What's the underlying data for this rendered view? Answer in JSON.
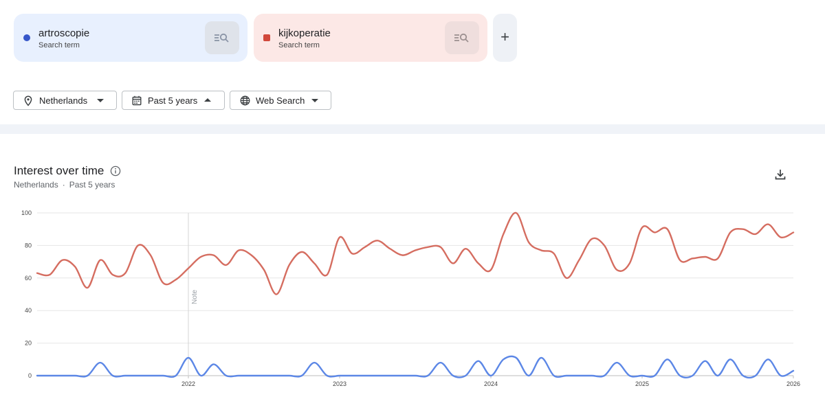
{
  "terms": [
    {
      "name": "artroscopie",
      "subtitle": "Search term",
      "color": "#3656c9",
      "marker": "dot"
    },
    {
      "name": "kijkoperatie",
      "subtitle": "Search term",
      "color": "#d1483b",
      "marker": "square"
    }
  ],
  "add_button": {
    "label": "+"
  },
  "filters": {
    "region": {
      "label": "Netherlands",
      "icon": "location-pin-icon",
      "caret": "down"
    },
    "time": {
      "label": "Past 5 years",
      "icon": "calendar-icon",
      "caret": "up"
    },
    "property": {
      "label": "Web Search",
      "icon": "globe-icon",
      "caret": "down"
    }
  },
  "section": {
    "title": "Interest over time",
    "subtitle_region": "Netherlands",
    "subtitle_sep": "·",
    "subtitle_time": "Past 5 years"
  },
  "chart_data": {
    "type": "line",
    "title": "",
    "xlabel": "",
    "ylabel": "",
    "ylim": [
      0,
      100
    ],
    "xlim": [
      2021.0,
      2026.0
    ],
    "yticks": [
      0,
      20,
      40,
      60,
      80,
      100
    ],
    "xticks": [
      "2022",
      "2023",
      "2024",
      "2025",
      "2026"
    ],
    "grid": true,
    "annotation": {
      "label": "Note",
      "x": 2022.0
    },
    "series": [
      {
        "color": "#d56d60",
        "x": [
          2021.0,
          2021.083,
          2021.167,
          2021.25,
          2021.333,
          2021.417,
          2021.5,
          2021.583,
          2021.667,
          2021.75,
          2021.833,
          2021.917,
          2022.0,
          2022.083,
          2022.167,
          2022.25,
          2022.333,
          2022.417,
          2022.5,
          2022.583,
          2022.667,
          2022.75,
          2022.833,
          2022.917,
          2023.0,
          2023.083,
          2023.167,
          2023.25,
          2023.333,
          2023.417,
          2023.5,
          2023.583,
          2023.667,
          2023.75,
          2023.833,
          2023.917,
          2024.0,
          2024.083,
          2024.167,
          2024.25,
          2024.333,
          2024.417,
          2024.5,
          2024.583,
          2024.667,
          2024.75,
          2024.833,
          2024.917,
          2025.0,
          2025.083,
          2025.167,
          2025.25,
          2025.333,
          2025.417,
          2025.5,
          2025.583,
          2025.667,
          2025.75,
          2025.833,
          2025.917,
          2026.0
        ],
        "values": [
          63,
          62,
          71,
          67,
          54,
          71,
          62,
          63,
          80,
          74,
          57,
          59,
          66,
          73,
          74,
          68,
          77,
          74,
          65,
          50,
          68,
          76,
          69,
          62,
          85,
          75,
          79,
          83,
          78,
          74,
          77,
          79,
          79,
          69,
          78,
          69,
          65,
          87,
          100,
          82,
          77,
          75,
          60,
          71,
          84,
          80,
          65,
          69,
          91,
          88,
          90,
          71,
          72,
          73,
          72,
          88,
          90,
          87,
          93,
          85,
          88
        ]
      },
      {
        "color": "#5c87e6",
        "x": [
          2021.0,
          2021.083,
          2021.167,
          2021.25,
          2021.333,
          2021.417,
          2021.5,
          2021.583,
          2021.667,
          2021.75,
          2021.833,
          2021.917,
          2022.0,
          2022.083,
          2022.167,
          2022.25,
          2022.333,
          2022.417,
          2022.5,
          2022.583,
          2022.667,
          2022.75,
          2022.833,
          2022.917,
          2023.0,
          2023.083,
          2023.167,
          2023.25,
          2023.333,
          2023.417,
          2023.5,
          2023.583,
          2023.667,
          2023.75,
          2023.833,
          2023.917,
          2024.0,
          2024.083,
          2024.167,
          2024.25,
          2024.333,
          2024.417,
          2024.5,
          2024.583,
          2024.667,
          2024.75,
          2024.833,
          2024.917,
          2025.0,
          2025.083,
          2025.167,
          2025.25,
          2025.333,
          2025.417,
          2025.5,
          2025.583,
          2025.667,
          2025.75,
          2025.833,
          2025.917,
          2026.0
        ],
        "values": [
          0,
          0,
          0,
          0,
          0,
          8,
          0,
          0,
          0,
          0,
          0,
          0,
          11,
          0,
          7,
          0,
          0,
          0,
          0,
          0,
          0,
          0,
          8,
          0,
          0,
          0,
          0,
          0,
          0,
          0,
          0,
          0,
          8,
          0,
          0,
          9,
          0,
          10,
          11,
          0,
          11,
          0,
          0,
          0,
          0,
          0,
          8,
          0,
          0,
          0,
          10,
          0,
          0,
          9,
          0,
          10,
          0,
          0,
          10,
          0,
          3
        ]
      }
    ]
  }
}
